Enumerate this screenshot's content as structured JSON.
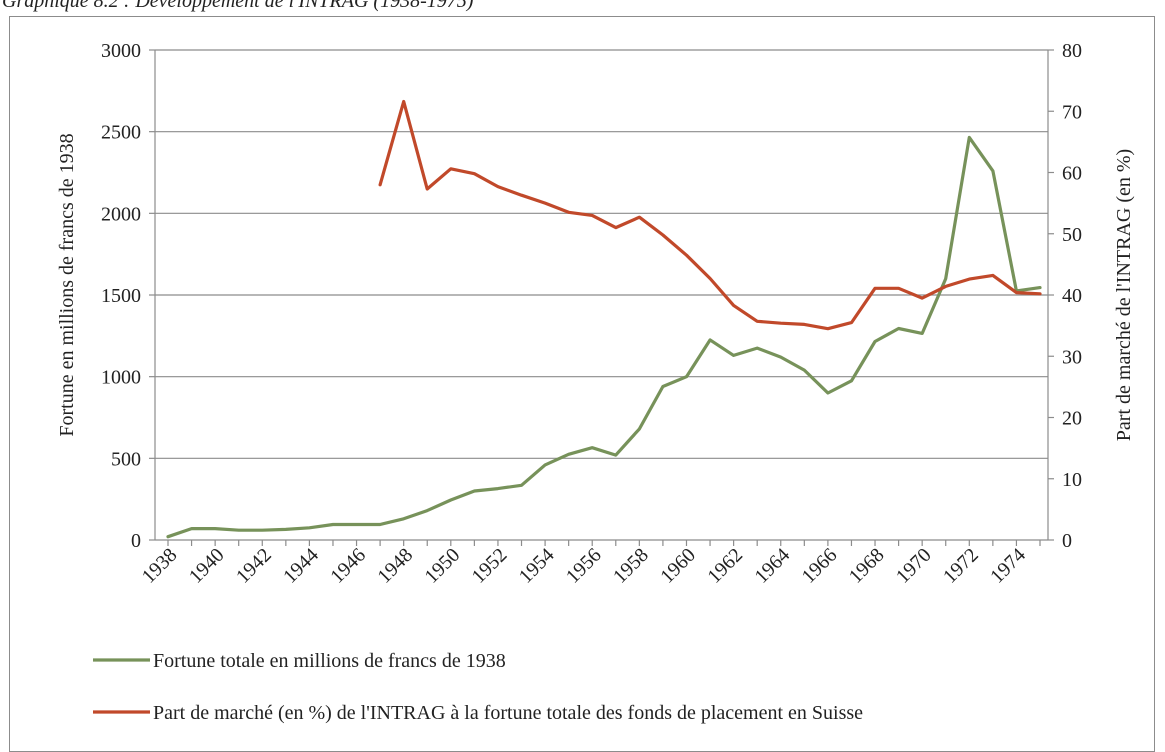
{
  "caption": "Graphique 8.2 : Développement de l'INTRAG (1938-1975)",
  "chart_data": {
    "type": "line",
    "title": "Graphique 8.2 : Développement de l'INTRAG (1938-1975)",
    "ylabel_left": "Fortune en millions de francs de 1938",
    "ylabel_right": "Part de marché de l'INTRAG (en %)",
    "xlabel": "",
    "ylim_left": [
      0,
      3000
    ],
    "ylim_right": [
      0,
      80
    ],
    "yticks_left": [
      "0",
      "500",
      "1000",
      "1500",
      "2000",
      "2500",
      "3000"
    ],
    "yticks_right": [
      "0",
      "10",
      "20",
      "30",
      "40",
      "50",
      "60",
      "70",
      "80"
    ],
    "x": [
      1938,
      1939,
      1940,
      1941,
      1942,
      1943,
      1944,
      1945,
      1946,
      1947,
      1948,
      1949,
      1950,
      1951,
      1952,
      1953,
      1954,
      1955,
      1956,
      1957,
      1958,
      1959,
      1960,
      1961,
      1962,
      1963,
      1964,
      1965,
      1966,
      1967,
      1968,
      1969,
      1970,
      1971,
      1972,
      1973,
      1974,
      1975
    ],
    "xtick_labels": [
      "1938",
      "1940",
      "1942",
      "1944",
      "1946",
      "1948",
      "1950",
      "1952",
      "1954",
      "1956",
      "1958",
      "1960",
      "1962",
      "1964",
      "1966",
      "1968",
      "1970",
      "1972",
      "1974"
    ],
    "grid": "horizontal",
    "legend_position": "bottom",
    "series": [
      {
        "name": "Fortune totale en millions de francs de 1938",
        "axis": "left",
        "color": "#77925a",
        "values": [
          20,
          70,
          70,
          60,
          60,
          65,
          75,
          95,
          95,
          95,
          130,
          180,
          245,
          300,
          315,
          335,
          460,
          525,
          565,
          520,
          680,
          940,
          1000,
          1225,
          1130,
          1175,
          1120,
          1040,
          900,
          975,
          1215,
          1295,
          1265,
          1600,
          2465,
          2260,
          1525,
          1545
        ]
      },
      {
        "name": "Part de marché (en %) de l'INTRAG à la fortune totale des fonds de placement en Suisse",
        "axis": "right",
        "color": "#c1492a",
        "values": [
          null,
          null,
          null,
          null,
          null,
          null,
          null,
          null,
          null,
          58,
          71.6,
          57.3,
          60.6,
          59.8,
          57.7,
          56.3,
          55.0,
          53.5,
          53.0,
          51.0,
          52.7,
          49.8,
          46.5,
          42.7,
          38.3,
          35.7,
          35.4,
          35.2,
          34.5,
          35.5,
          41.1,
          41.1,
          39.5,
          41.4,
          42.6,
          43.2,
          40.4,
          40.2
        ]
      }
    ]
  }
}
